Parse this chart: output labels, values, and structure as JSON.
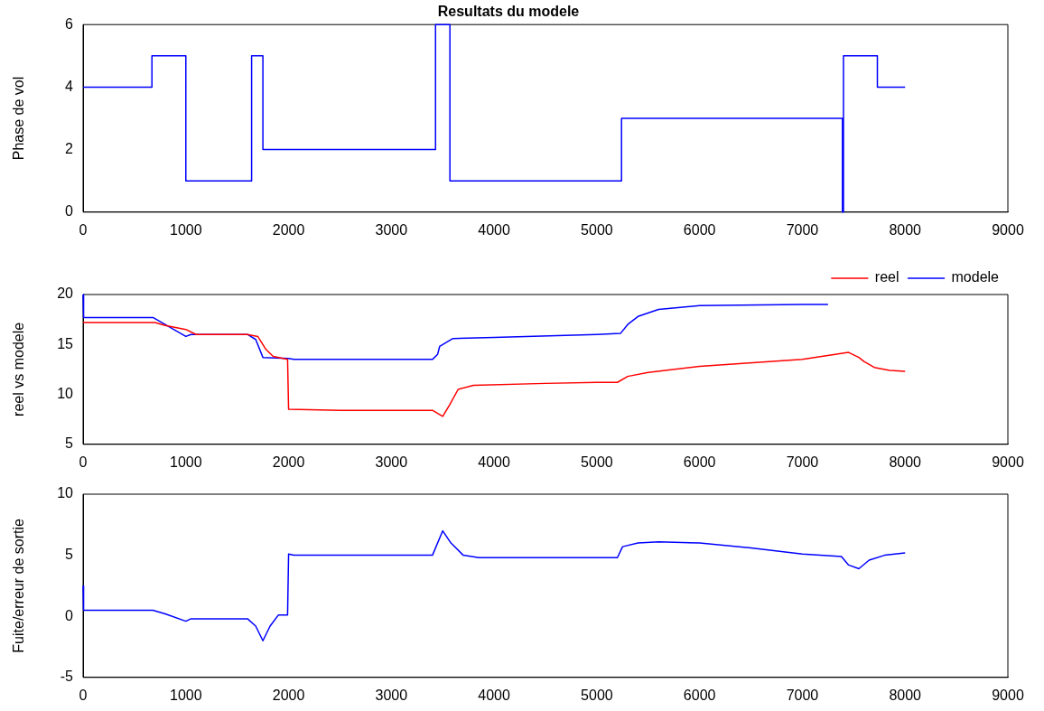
{
  "chart_data": [
    {
      "type": "step",
      "title": "Resultats du modele",
      "ylabel": "Phase de vol",
      "xlim": [
        0,
        9000
      ],
      "xticks": [
        0,
        1000,
        2000,
        3000,
        4000,
        5000,
        6000,
        7000,
        8000,
        9000
      ],
      "ylim": [
        0,
        6
      ],
      "yticks": [
        0,
        2,
        4,
        6
      ],
      "grid": false,
      "legend": false,
      "series": [
        {
          "color": "#0000ff",
          "x": [
            0,
            670,
            1000,
            1640,
            1750,
            3430,
            3570,
            5240,
            7390,
            7400,
            7730,
            8000
          ],
          "values": [
            4,
            5,
            1,
            5,
            2,
            6,
            1,
            3,
            0,
            5,
            4,
            4
          ]
        }
      ]
    },
    {
      "type": "line",
      "ylabel": "reel vs modele",
      "xlim": [
        0,
        9000
      ],
      "xticks": [
        0,
        1000,
        2000,
        3000,
        4000,
        5000,
        6000,
        7000,
        8000,
        9000
      ],
      "ylim": [
        5,
        20
      ],
      "yticks": [
        5,
        10,
        15,
        20
      ],
      "grid": false,
      "legend": "top right",
      "series": [
        {
          "name": "reel",
          "color": "#ff0000",
          "x": [
            0,
            700,
            800,
            1000,
            1100,
            1600,
            1700,
            1780,
            1850,
            1990,
            2000,
            2500,
            3400,
            3500,
            3570,
            3650,
            3800,
            4500,
            5000,
            5200,
            5300,
            5500,
            6000,
            7000,
            7450,
            7550,
            7600,
            7700,
            7850,
            8000
          ],
          "values": [
            17.2,
            17.2,
            16.9,
            16.5,
            16,
            16,
            15.8,
            14.5,
            13.8,
            13.5,
            8.5,
            8.4,
            8.4,
            7.8,
            9,
            10.5,
            10.9,
            11.1,
            11.2,
            11.2,
            11.8,
            12.2,
            12.8,
            13.5,
            14.2,
            13.7,
            13.3,
            12.7,
            12.4,
            12.3
          ]
        },
        {
          "name": "modele",
          "color": "#0000ff",
          "x": [
            0,
            5,
            680,
            1000,
            1050,
            1600,
            1680,
            1750,
            2000,
            2050,
            3400,
            3450,
            3470,
            3600,
            4000,
            5000,
            5230,
            5300,
            5400,
            5600,
            6000,
            7000,
            7250
          ],
          "values": [
            20,
            17.7,
            17.7,
            15.8,
            16,
            16,
            15.5,
            13.7,
            13.6,
            13.5,
            13.5,
            14,
            14.8,
            15.6,
            15.7,
            16,
            16.1,
            17,
            17.8,
            18.5,
            18.9,
            19,
            19
          ]
        }
      ]
    },
    {
      "type": "line",
      "ylabel": "Fuite/erreur de sortie",
      "xlim": [
        0,
        9000
      ],
      "xticks": [
        0,
        1000,
        2000,
        3000,
        4000,
        5000,
        6000,
        7000,
        8000,
        9000
      ],
      "ylim": [
        -5,
        10
      ],
      "yticks": [
        -5,
        0,
        5,
        10
      ],
      "grid": false,
      "legend": false,
      "series": [
        {
          "color": "#0000ff",
          "x": [
            0,
            5,
            680,
            800,
            1000,
            1050,
            1600,
            1680,
            1750,
            1820,
            1900,
            1990,
            2000,
            2050,
            3400,
            3500,
            3580,
            3700,
            3850,
            5200,
            5250,
            5400,
            5600,
            6000,
            6500,
            7000,
            7380,
            7450,
            7550,
            7650,
            7800,
            8000
          ],
          "values": [
            2.5,
            0.5,
            0.5,
            0.2,
            -0.4,
            -0.2,
            -0.2,
            -0.8,
            -2,
            -0.8,
            0.1,
            0.1,
            5.1,
            5,
            5,
            7,
            6,
            5,
            4.8,
            4.8,
            5.7,
            6,
            6.1,
            6,
            5.6,
            5.1,
            4.9,
            4.2,
            3.9,
            4.6,
            5,
            5.2
          ]
        }
      ]
    }
  ]
}
